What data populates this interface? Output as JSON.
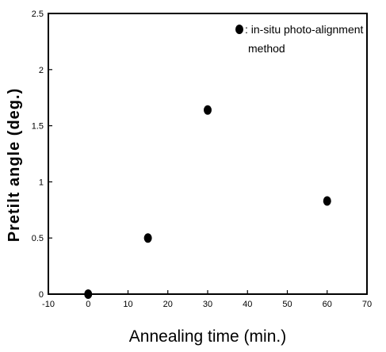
{
  "chart_data": {
    "type": "scatter",
    "title": "",
    "xlabel": "Annealing time (min.)",
    "ylabel": "Pretilt angle (deg.)",
    "xlim": [
      -10,
      70
    ],
    "ylim": [
      0,
      2.5
    ],
    "xticks": [
      -10,
      0,
      10,
      20,
      30,
      40,
      50,
      60,
      70
    ],
    "xtick_labels": [
      "-10",
      "0",
      "10",
      "20",
      "30",
      "40",
      "50",
      "60",
      "70"
    ],
    "yticks": [
      0,
      0.5,
      1,
      1.5,
      2,
      2.5
    ],
    "ytick_labels": [
      "0",
      "0.5",
      "1",
      "1.5",
      "2",
      "2.5"
    ],
    "grid": false,
    "legend_position": "top-right",
    "series": [
      {
        "name": ": in-situ photo-alignment method",
        "marker": "filled-circle",
        "color": "#000000",
        "x": [
          0,
          15,
          30,
          60
        ],
        "y": [
          0.0,
          0.5,
          1.64,
          0.83
        ]
      }
    ],
    "legend": {
      "line1": ": in-situ photo-alignment",
      "line2": "method"
    },
    "baseline_line": {
      "x": [
        -10,
        0
      ],
      "y": [
        0,
        0
      ]
    }
  }
}
